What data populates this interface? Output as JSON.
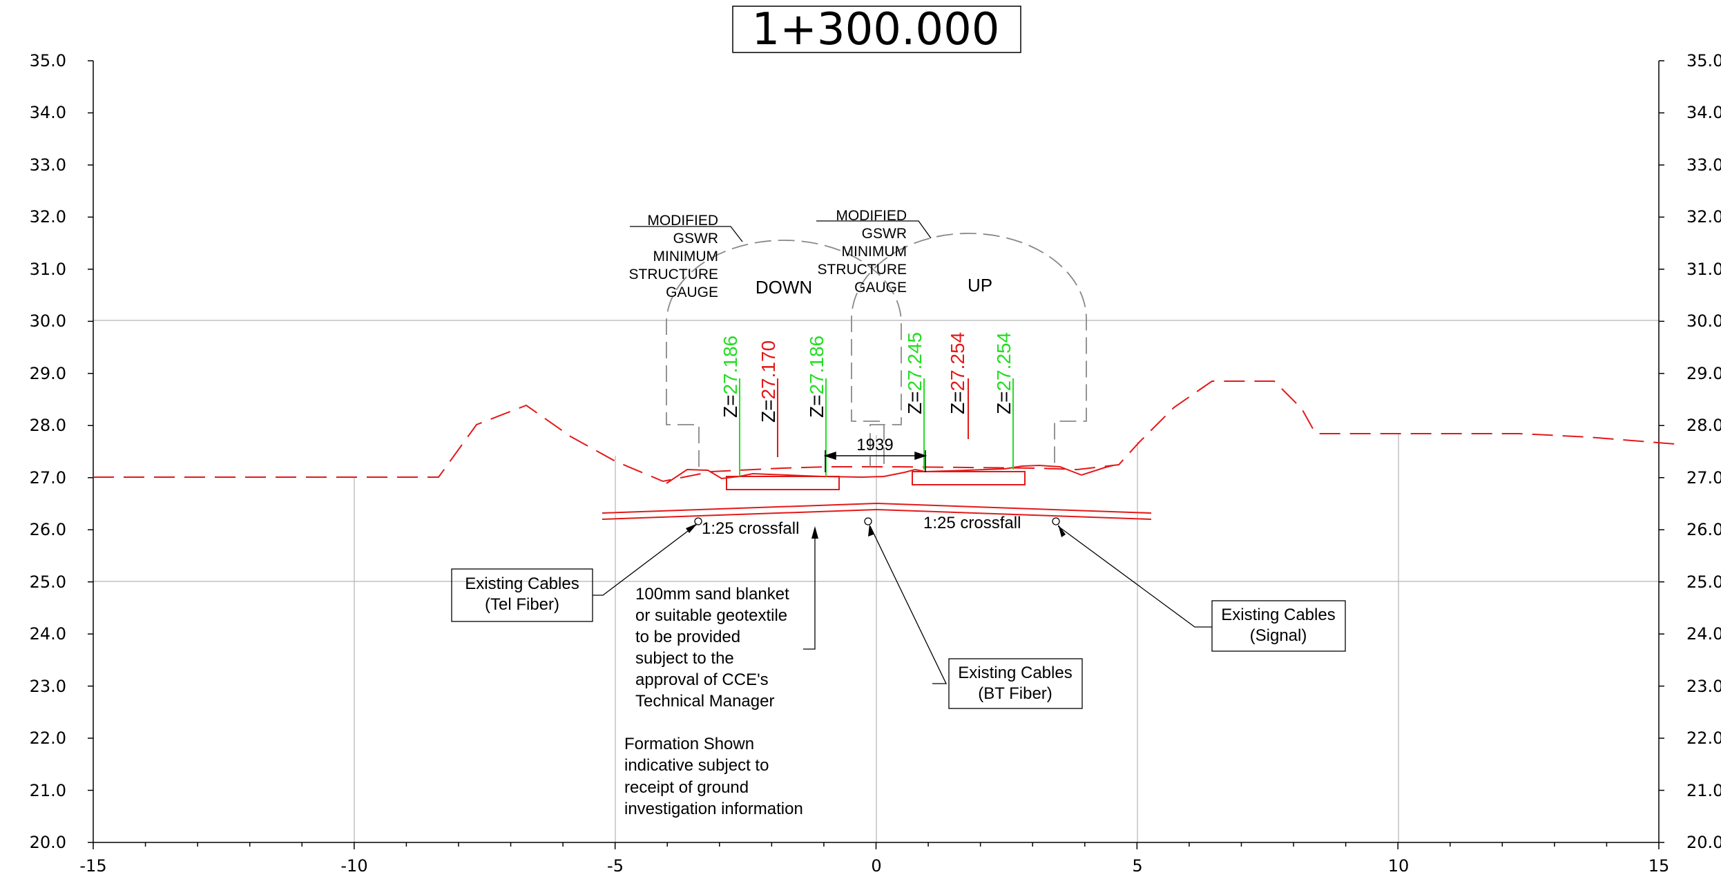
{
  "title": "1+300.000",
  "axes": {
    "y_ticks": [
      "35.0",
      "34.0",
      "33.0",
      "32.0",
      "31.0",
      "30.0",
      "29.0",
      "28.0",
      "27.0",
      "26.0",
      "25.0",
      "24.0",
      "23.0",
      "22.0",
      "21.0",
      "20.0"
    ],
    "x_ticks": [
      "-15",
      "-10",
      "-5",
      "0",
      "5",
      "10",
      "15"
    ],
    "x_range": [
      -15,
      15
    ],
    "y_range": [
      20,
      35
    ]
  },
  "tracks": {
    "down": "DOWN",
    "up": "UP"
  },
  "gauge_label_down": [
    "MODIFIED",
    "GSWR",
    "MINIMUM",
    "STRUCTURE",
    "GAUGE"
  ],
  "gauge_label_up": [
    "MODIFIED",
    "GSWR",
    "MINIMUM",
    "STRUCTURE",
    "GAUGE"
  ],
  "levels": [
    {
      "prefix": "Z=",
      "value": "27.186",
      "color": "#22dd22"
    },
    {
      "prefix": "Z=",
      "value": "27.170",
      "color": "#e31818"
    },
    {
      "prefix": "Z=",
      "value": "27.186",
      "color": "#22dd22"
    },
    {
      "prefix": "Z=",
      "value": "27.245",
      "color": "#22dd22"
    },
    {
      "prefix": "Z=",
      "value": "27.254",
      "color": "#e31818"
    },
    {
      "prefix": "Z=",
      "value": "27.254",
      "color": "#22dd22"
    }
  ],
  "track_spacing": "1939",
  "crossfall_left": "1:25 crossfall",
  "crossfall_right": "1:25 crossfall",
  "cables": {
    "tel": [
      "Existing Cables",
      "(Tel Fiber)"
    ],
    "signal": [
      "Existing Cables",
      "(Signal)"
    ],
    "bt": [
      "Existing Cables",
      "(BT Fiber)"
    ]
  },
  "sand_note": [
    "100mm sand blanket",
    "or suitable geotextile",
    "to be provided",
    "subject to the",
    "approval of CCE's",
    "Technical Manager"
  ],
  "formation_note": [
    "Formation Shown",
    "indicative subject to",
    "receipt of ground",
    "investigation information"
  ],
  "colors": {
    "existing_ground": "#e31818",
    "design": "#e31818",
    "level_green": "#22dd22",
    "gauge": "#888888",
    "grid": "#b4b4b4"
  }
}
